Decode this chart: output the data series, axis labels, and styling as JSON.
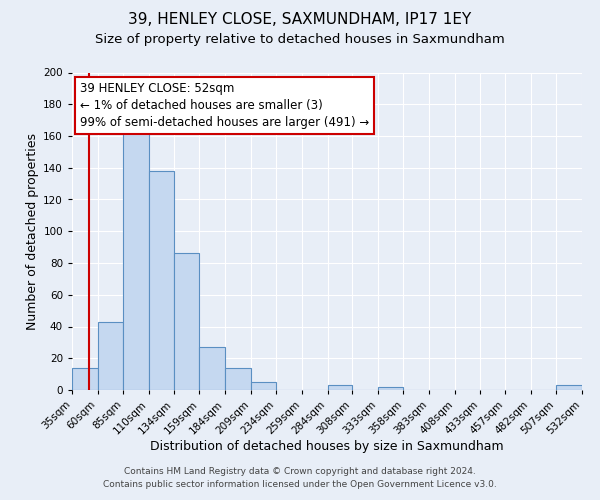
{
  "title": "39, HENLEY CLOSE, SAXMUNDHAM, IP17 1EY",
  "subtitle": "Size of property relative to detached houses in Saxmundham",
  "xlabel": "Distribution of detached houses by size in Saxmundham",
  "ylabel": "Number of detached properties",
  "bar_left_edges": [
    35,
    60,
    85,
    110,
    134,
    159,
    184,
    209,
    234,
    259,
    284,
    308,
    333,
    358,
    383,
    408,
    433,
    457,
    482,
    507
  ],
  "bar_widths": [
    25,
    25,
    25,
    24,
    25,
    25,
    25,
    25,
    25,
    25,
    24,
    25,
    25,
    25,
    25,
    25,
    24,
    25,
    25,
    25
  ],
  "bar_heights": [
    14,
    43,
    164,
    138,
    86,
    27,
    14,
    5,
    0,
    0,
    3,
    0,
    2,
    0,
    0,
    0,
    0,
    0,
    0,
    3
  ],
  "bar_fill_color": "#c5d8f0",
  "bar_edge_color": "#5a8fc2",
  "tick_labels": [
    "35sqm",
    "60sqm",
    "85sqm",
    "110sqm",
    "134sqm",
    "159sqm",
    "184sqm",
    "209sqm",
    "234sqm",
    "259sqm",
    "284sqm",
    "308sqm",
    "333sqm",
    "358sqm",
    "383sqm",
    "408sqm",
    "433sqm",
    "457sqm",
    "482sqm",
    "507sqm",
    "532sqm"
  ],
  "property_line_x": 52,
  "property_line_color": "#cc0000",
  "annotation_line1": "39 HENLEY CLOSE: 52sqm",
  "annotation_line2": "← 1% of detached houses are smaller (3)",
  "annotation_line3": "99% of semi-detached houses are larger (491) →",
  "annotation_box_edge_color": "#cc0000",
  "ylim": [
    0,
    200
  ],
  "yticks": [
    0,
    20,
    40,
    60,
    80,
    100,
    120,
    140,
    160,
    180,
    200
  ],
  "background_color": "#e8eef7",
  "footer_line1": "Contains HM Land Registry data © Crown copyright and database right 2024.",
  "footer_line2": "Contains public sector information licensed under the Open Government Licence v3.0.",
  "title_fontsize": 11,
  "subtitle_fontsize": 9.5,
  "xlabel_fontsize": 9,
  "ylabel_fontsize": 9,
  "tick_fontsize": 7.5,
  "annotation_fontsize": 8.5,
  "footer_fontsize": 6.5
}
